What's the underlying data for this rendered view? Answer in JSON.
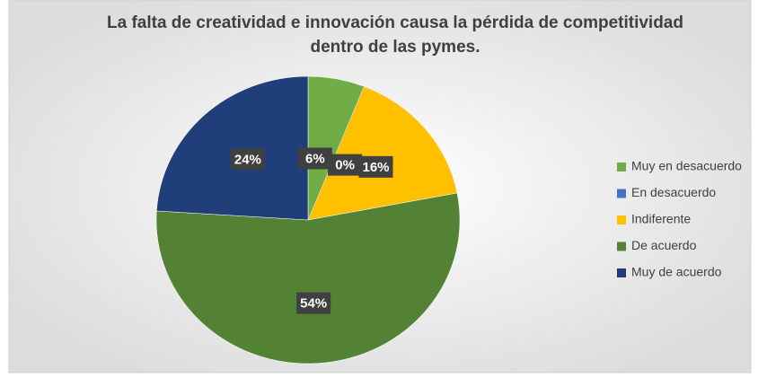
{
  "chart_data": {
    "type": "pie",
    "title": [
      "La falta de creatividad e innovación causa la pérdida de competitividad",
      "dentro de las pymes."
    ],
    "categories": [
      "Muy en desacuerdo",
      "En desacuerdo",
      "Indiferente",
      "De acuerdo",
      "Muy de acuerdo"
    ],
    "values": [
      6,
      0,
      16,
      54,
      24
    ],
    "value_labels": [
      "6%",
      "0%",
      "16%",
      "54%",
      "24%"
    ],
    "colors": [
      "#70ad47",
      "#4472c4",
      "#ffc000",
      "#548235",
      "#203f7a"
    ],
    "legend": "right"
  }
}
